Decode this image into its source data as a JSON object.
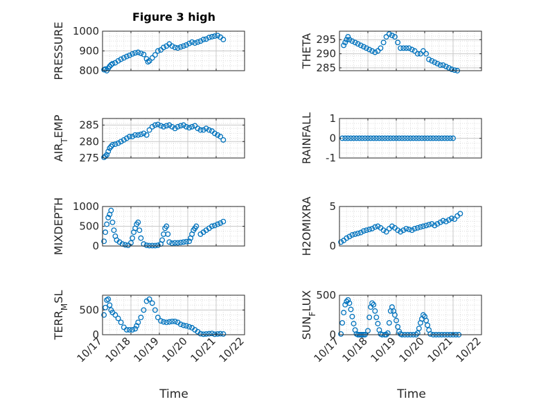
{
  "figure_title": "Figure 3 high",
  "chart_data": [
    {
      "type": "scatter",
      "ylabel": "PRESSURE",
      "ylim": [
        800,
        1000
      ],
      "yticks": [
        800,
        900,
        1000
      ],
      "xlim": [
        17,
        22
      ],
      "grid": true,
      "marker": "circle-open",
      "color": "#0072BD",
      "x": [
        17.05,
        17.1,
        17.15,
        17.2,
        17.25,
        17.3,
        17.35,
        17.45,
        17.55,
        17.65,
        17.75,
        17.85,
        17.95,
        18.05,
        18.15,
        18.25,
        18.35,
        18.45,
        18.55,
        18.6,
        18.65,
        18.75,
        18.85,
        18.95,
        19.05,
        19.15,
        19.25,
        19.35,
        19.45,
        19.55,
        19.65,
        19.75,
        19.85,
        19.95,
        20.05,
        20.15,
        20.25,
        20.35,
        20.45,
        20.55,
        20.65,
        20.75,
        20.85,
        20.95,
        21.05,
        21.15,
        21.25
      ],
      "y": [
        805,
        808,
        800,
        812,
        822,
        830,
        835,
        840,
        850,
        858,
        865,
        872,
        878,
        885,
        890,
        893,
        888,
        882,
        860,
        845,
        850,
        865,
        880,
        900,
        905,
        918,
        925,
        935,
        925,
        918,
        915,
        920,
        925,
        930,
        938,
        945,
        940,
        945,
        950,
        958,
        960,
        968,
        972,
        975,
        978,
        970,
        958
      ]
    },
    {
      "type": "scatter",
      "ylabel": "THETA",
      "ylim": [
        284,
        298
      ],
      "yticks": [
        285,
        290,
        295
      ],
      "xlim": [
        17,
        22
      ],
      "grid": true,
      "marker": "circle-open",
      "color": "#0072BD",
      "x": [
        17.15,
        17.2,
        17.25,
        17.3,
        17.35,
        17.45,
        17.55,
        17.65,
        17.75,
        17.85,
        17.95,
        18.05,
        18.15,
        18.25,
        18.35,
        18.45,
        18.55,
        18.65,
        18.75,
        18.85,
        18.95,
        19.05,
        19.15,
        19.25,
        19.35,
        19.45,
        19.55,
        19.65,
        19.75,
        19.85,
        19.95,
        20.05,
        20.15,
        20.25,
        20.35,
        20.45,
        20.55,
        20.65,
        20.75,
        20.85,
        20.95,
        21.05,
        21.15
      ],
      "y": [
        293,
        294,
        295,
        296,
        295,
        294.5,
        294,
        293.5,
        293,
        292.5,
        292,
        291.5,
        291,
        290.5,
        291,
        292,
        294,
        296,
        297,
        296.5,
        296,
        294,
        292,
        292,
        292,
        292,
        291.5,
        291,
        290,
        290,
        291,
        290,
        288,
        287.5,
        287,
        286.5,
        286,
        286,
        285.5,
        285,
        284.5,
        284.2,
        284
      ]
    },
    {
      "type": "scatter",
      "ylabel": "AIR_TEMP",
      "ylim": [
        275,
        287
      ],
      "yticks": [
        275,
        280,
        285
      ],
      "xlim": [
        17,
        22
      ],
      "grid": true,
      "marker": "circle-open",
      "color": "#0072BD",
      "x": [
        17.05,
        17.1,
        17.15,
        17.2,
        17.25,
        17.3,
        17.35,
        17.45,
        17.55,
        17.65,
        17.75,
        17.85,
        17.95,
        18.05,
        18.15,
        18.25,
        18.35,
        18.45,
        18.55,
        18.65,
        18.75,
        18.85,
        18.95,
        19.05,
        19.15,
        19.25,
        19.35,
        19.45,
        19.55,
        19.65,
        19.75,
        19.85,
        19.95,
        20.05,
        20.15,
        20.25,
        20.35,
        20.45,
        20.55,
        20.65,
        20.75,
        20.85,
        20.95,
        21.05,
        21.15,
        21.25
      ],
      "y": [
        275.2,
        275.5,
        276,
        277,
        278,
        278.5,
        279,
        279.2,
        279.5,
        280,
        280.5,
        281,
        281.5,
        281.5,
        282,
        282,
        282.2,
        282.5,
        282,
        283.5,
        284.5,
        285,
        285.2,
        284.8,
        284.5,
        284.8,
        285,
        284.5,
        284,
        284.5,
        284.8,
        285,
        284.5,
        284.2,
        284.5,
        284.8,
        284,
        283.5,
        283.5,
        284,
        283.5,
        283.2,
        282.5,
        282,
        281.5,
        280.5
      ]
    },
    {
      "type": "scatter",
      "ylabel": "RAINFALL",
      "ylim": [
        -1,
        1
      ],
      "yticks": [
        -1,
        0,
        1
      ],
      "xlim": [
        17,
        22
      ],
      "grid": true,
      "marker": "circle-open",
      "color": "#0072BD",
      "x": [
        17.1,
        17.2,
        17.3,
        17.4,
        17.5,
        17.6,
        17.7,
        17.8,
        17.9,
        18.0,
        18.1,
        18.2,
        18.3,
        18.4,
        18.5,
        18.6,
        18.7,
        18.8,
        18.9,
        19.0,
        19.1,
        19.2,
        19.3,
        19.4,
        19.5,
        19.6,
        19.7,
        19.8,
        19.9,
        20.0,
        20.1,
        20.2,
        20.3,
        20.4,
        20.5,
        20.6,
        20.7,
        20.8,
        20.9,
        21.0
      ],
      "y": [
        0,
        0,
        0,
        0,
        0,
        0,
        0,
        0,
        0,
        0,
        0,
        0,
        0,
        0,
        0,
        0,
        0,
        0,
        0,
        0,
        0,
        0,
        0,
        0,
        0,
        0,
        0,
        0,
        0,
        0,
        0,
        0,
        0,
        0,
        0,
        0,
        0,
        0,
        0,
        0
      ]
    },
    {
      "type": "scatter",
      "ylabel": "MIXDEPTH",
      "ylim": [
        0,
        1000
      ],
      "yticks": [
        0,
        500,
        1000
      ],
      "xlim": [
        17,
        22
      ],
      "grid": true,
      "marker": "circle-open",
      "color": "#0072BD",
      "x": [
        17.05,
        17.1,
        17.15,
        17.2,
        17.25,
        17.3,
        17.35,
        17.4,
        17.45,
        17.5,
        17.6,
        17.7,
        17.8,
        17.9,
        18.0,
        18.05,
        18.1,
        18.15,
        18.2,
        18.25,
        18.3,
        18.35,
        18.45,
        18.55,
        18.65,
        18.75,
        18.85,
        18.95,
        19.05,
        19.1,
        19.15,
        19.2,
        19.25,
        19.3,
        19.35,
        19.45,
        19.55,
        19.65,
        19.75,
        19.85,
        19.95,
        20.05,
        20.1,
        20.15,
        20.2,
        20.25,
        20.3,
        20.45,
        20.55,
        20.65,
        20.75,
        20.85,
        20.95,
        21.05,
        21.15,
        21.25
      ],
      "y": [
        120,
        350,
        550,
        720,
        800,
        900,
        600,
        400,
        250,
        150,
        100,
        50,
        30,
        20,
        80,
        200,
        350,
        450,
        550,
        600,
        400,
        200,
        50,
        20,
        10,
        10,
        10,
        20,
        50,
        150,
        300,
        450,
        500,
        300,
        100,
        70,
        80,
        80,
        90,
        100,
        110,
        120,
        200,
        300,
        400,
        450,
        500,
        300,
        350,
        400,
        450,
        500,
        520,
        550,
        580,
        620
      ]
    },
    {
      "type": "scatter",
      "ylabel": "H2OMIXRA",
      "ylim": [
        0,
        5
      ],
      "yticks": [
        0,
        5
      ],
      "xlim": [
        17,
        22
      ],
      "grid": true,
      "marker": "circle-open",
      "color": "#0072BD",
      "x": [
        17.05,
        17.15,
        17.25,
        17.35,
        17.45,
        17.55,
        17.65,
        17.75,
        17.85,
        17.95,
        18.05,
        18.15,
        18.25,
        18.35,
        18.45,
        18.55,
        18.65,
        18.75,
        18.85,
        18.95,
        19.05,
        19.15,
        19.25,
        19.35,
        19.45,
        19.55,
        19.65,
        19.75,
        19.85,
        19.95,
        20.05,
        20.15,
        20.25,
        20.35,
        20.45,
        20.55,
        20.65,
        20.75,
        20.85,
        20.95,
        21.05,
        21.15,
        21.25
      ],
      "y": [
        0.5,
        0.7,
        1.0,
        1.2,
        1.4,
        1.5,
        1.6,
        1.7,
        1.9,
        2.0,
        2.1,
        2.2,
        2.4,
        2.5,
        2.3,
        2.0,
        1.8,
        2.2,
        2.5,
        2.3,
        2.0,
        1.8,
        2.0,
        2.2,
        2.1,
        2.0,
        2.2,
        2.3,
        2.4,
        2.5,
        2.6,
        2.7,
        2.8,
        2.6,
        2.8,
        3.0,
        3.2,
        3.1,
        3.3,
        3.5,
        3.4,
        3.8,
        4.1
      ]
    },
    {
      "type": "scatter",
      "ylabel": "TERR_MSL",
      "ylim": [
        0,
        800
      ],
      "yticks": [
        0,
        500
      ],
      "xlim": [
        17,
        22
      ],
      "grid": true,
      "marker": "circle-open",
      "color": "#0072BD",
      "x": [
        17.05,
        17.1,
        17.15,
        17.2,
        17.25,
        17.3,
        17.35,
        17.45,
        17.55,
        17.65,
        17.75,
        17.85,
        17.95,
        18.05,
        18.15,
        18.2,
        18.25,
        18.35,
        18.45,
        18.55,
        18.65,
        18.75,
        18.85,
        18.95,
        19.05,
        19.15,
        19.25,
        19.35,
        19.45,
        19.55,
        19.65,
        19.75,
        19.85,
        19.95,
        20.05,
        20.15,
        20.25,
        20.35,
        20.45,
        20.55,
        20.65,
        20.75,
        20.85,
        20.95,
        21.05,
        21.15,
        21.25
      ],
      "y": [
        400,
        550,
        700,
        720,
        600,
        500,
        450,
        400,
        330,
        250,
        150,
        100,
        100,
        100,
        120,
        180,
        250,
        350,
        500,
        680,
        720,
        640,
        500,
        350,
        280,
        260,
        250,
        260,
        270,
        270,
        250,
        210,
        190,
        180,
        160,
        140,
        100,
        60,
        20,
        10,
        15,
        20,
        25,
        10,
        15,
        20,
        15
      ]
    },
    {
      "type": "scatter",
      "ylabel": "SUN_FLUX",
      "ylim": [
        0,
        500
      ],
      "yticks": [
        0,
        500
      ],
      "xlim": [
        17,
        22
      ],
      "grid": true,
      "marker": "circle-open",
      "color": "#0072BD",
      "x": [
        17.05,
        17.1,
        17.15,
        17.2,
        17.25,
        17.3,
        17.35,
        17.4,
        17.45,
        17.5,
        17.55,
        17.6,
        17.65,
        17.7,
        17.75,
        17.8,
        17.85,
        17.9,
        18.0,
        18.05,
        18.1,
        18.15,
        18.2,
        18.25,
        18.3,
        18.35,
        18.4,
        18.45,
        18.5,
        18.6,
        18.65,
        18.7,
        18.75,
        18.8,
        18.85,
        18.9,
        18.95,
        19.0,
        19.05,
        19.1,
        19.15,
        19.2,
        19.3,
        19.4,
        19.5,
        19.6,
        19.7,
        19.75,
        19.8,
        19.85,
        19.9,
        19.95,
        20.0,
        20.05,
        20.1,
        20.15,
        20.2,
        20.3,
        20.4,
        20.5,
        20.6,
        20.7,
        20.8,
        20.9,
        21.0,
        21.1,
        21.2
      ],
      "y": [
        10,
        150,
        280,
        380,
        420,
        440,
        400,
        320,
        230,
        140,
        60,
        10,
        0,
        0,
        0,
        0,
        0,
        0,
        50,
        220,
        350,
        400,
        380,
        300,
        220,
        140,
        60,
        10,
        0,
        0,
        0,
        20,
        150,
        300,
        350,
        300,
        250,
        180,
        100,
        40,
        10,
        0,
        0,
        0,
        0,
        0,
        0,
        20,
        80,
        150,
        200,
        250,
        230,
        180,
        120,
        60,
        10,
        0,
        0,
        0,
        0,
        0,
        0,
        0,
        0,
        0,
        0
      ]
    }
  ],
  "x_tick_labels": [
    "10/17",
    "10/18",
    "10/19",
    "10/20",
    "10/21",
    "10/22"
  ],
  "x_axis_label": "Time"
}
